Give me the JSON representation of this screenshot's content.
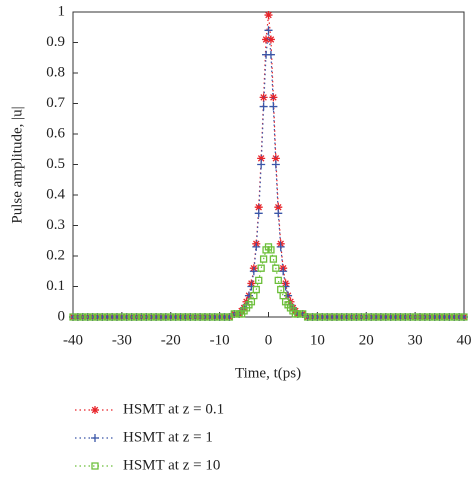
{
  "chart_data": {
    "type": "line",
    "xlabel": "Time, t(ps)",
    "ylabel": "Pulse amplitude, |u|",
    "x": [
      -40,
      -39,
      -38,
      -37,
      -36,
      -35,
      -34,
      -33,
      -32,
      -31,
      -30,
      -29,
      -28,
      -27,
      -26,
      -25,
      -24,
      -23,
      -22,
      -21,
      -20,
      -19,
      -18,
      -17,
      -16,
      -15,
      -14,
      -13,
      -12,
      -11,
      -10,
      -9,
      -8,
      -7,
      -6,
      -5.5,
      -5,
      -4.5,
      -4,
      -3.5,
      -3,
      -2.5,
      -2,
      -1.5,
      -1,
      -0.5,
      0,
      0.5,
      1,
      1.5,
      2,
      2.5,
      3,
      3.5,
      4,
      4.5,
      5,
      5.5,
      6,
      7,
      8,
      9,
      10,
      11,
      12,
      13,
      14,
      15,
      16,
      17,
      18,
      19,
      20,
      21,
      22,
      23,
      24,
      25,
      26,
      27,
      28,
      29,
      30,
      31,
      32,
      33,
      34,
      35,
      36,
      37,
      38,
      39,
      40
    ],
    "series": [
      {
        "name": "HSMT at z = 0.1",
        "color": "#e8242a",
        "marker": "star",
        "values": [
          0,
          0,
          0,
          0,
          0,
          0,
          0,
          0,
          0,
          0,
          0,
          0,
          0,
          0,
          0,
          0,
          0,
          0,
          0,
          0,
          0,
          0,
          0,
          0,
          0,
          0,
          0,
          0,
          0,
          0,
          0,
          0,
          0,
          0.01,
          0.01,
          0.02,
          0.03,
          0.05,
          0.07,
          0.11,
          0.16,
          0.24,
          0.36,
          0.52,
          0.72,
          0.91,
          0.99,
          0.91,
          0.72,
          0.52,
          0.36,
          0.24,
          0.16,
          0.11,
          0.07,
          0.05,
          0.03,
          0.02,
          0.01,
          0.01,
          0,
          0,
          0,
          0,
          0,
          0,
          0,
          0,
          0,
          0,
          0,
          0,
          0,
          0,
          0,
          0,
          0,
          0,
          0,
          0,
          0,
          0,
          0,
          0,
          0,
          0,
          0,
          0,
          0,
          0,
          0,
          0,
          0
        ]
      },
      {
        "name": "HSMT at z = 1",
        "color": "#3a56a8",
        "marker": "plus",
        "values": [
          0,
          0,
          0,
          0,
          0,
          0,
          0,
          0,
          0,
          0,
          0,
          0,
          0,
          0,
          0,
          0,
          0,
          0,
          0,
          0,
          0,
          0,
          0,
          0,
          0,
          0,
          0,
          0,
          0,
          0,
          0,
          0,
          0,
          0.01,
          0.01,
          0.02,
          0.03,
          0.04,
          0.07,
          0.1,
          0.15,
          0.23,
          0.34,
          0.5,
          0.69,
          0.86,
          0.94,
          0.86,
          0.69,
          0.5,
          0.34,
          0.23,
          0.15,
          0.1,
          0.07,
          0.04,
          0.03,
          0.02,
          0.01,
          0.01,
          0,
          0,
          0,
          0,
          0,
          0,
          0,
          0,
          0,
          0,
          0,
          0,
          0,
          0,
          0,
          0,
          0,
          0,
          0,
          0,
          0,
          0,
          0,
          0,
          0,
          0,
          0,
          0,
          0,
          0,
          0,
          0,
          0
        ]
      },
      {
        "name": "HSMT at z = 10",
        "color": "#6cbf3a",
        "marker": "square",
        "values": [
          0,
          0,
          0,
          0,
          0,
          0,
          0,
          0,
          0,
          0,
          0,
          0,
          0,
          0,
          0,
          0,
          0,
          0,
          0,
          0,
          0,
          0,
          0,
          0,
          0,
          0,
          0,
          0,
          0,
          0,
          0,
          0,
          0,
          0.01,
          0.01,
          0.01,
          0.02,
          0.03,
          0.04,
          0.05,
          0.07,
          0.09,
          0.12,
          0.16,
          0.19,
          0.22,
          0.23,
          0.22,
          0.19,
          0.16,
          0.12,
          0.09,
          0.07,
          0.05,
          0.04,
          0.03,
          0.02,
          0.01,
          0.01,
          0.01,
          0,
          0,
          0,
          0,
          0,
          0,
          0,
          0,
          0,
          0,
          0,
          0,
          0,
          0,
          0,
          0,
          0,
          0,
          0,
          0,
          0,
          0,
          0,
          0,
          0,
          0,
          0,
          0,
          0,
          0,
          0,
          0,
          0
        ]
      }
    ],
    "xlim": [
      -40,
      40
    ],
    "xticks": [
      -40,
      -30,
      -20,
      -10,
      0,
      10,
      20,
      30,
      40
    ],
    "ylim": [
      0,
      1
    ],
    "yticks": [
      0,
      0.1,
      0.2,
      0.3,
      0.4,
      0.5,
      0.6,
      0.7,
      0.8,
      0.9,
      1
    ],
    "grid": false,
    "legend": "bottom-left"
  }
}
